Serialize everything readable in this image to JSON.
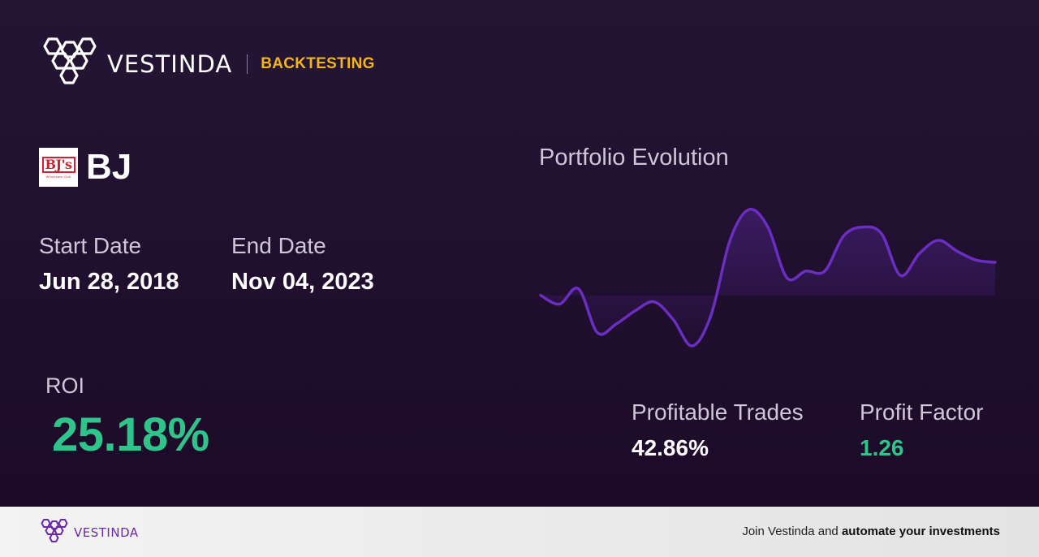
{
  "header": {
    "brand_name": "VESTINDA",
    "section": "BACKTESTING"
  },
  "ticker": {
    "logo_text": "BJ's",
    "logo_subtext": "Wholesale Club",
    "symbol": "BJ"
  },
  "dates": {
    "start_label": "Start Date",
    "start_value": "Jun 28, 2018",
    "end_label": "End Date",
    "end_value": "Nov 04, 2023"
  },
  "roi": {
    "label": "ROI",
    "value": "25.18%"
  },
  "stats": {
    "profitable_trades_label": "Profitable Trades",
    "profitable_trades_value": "42.86%",
    "profit_factor_label": "Profit Factor",
    "profit_factor_value": "1.26"
  },
  "chart": {
    "title": "Portfolio Evolution"
  },
  "chart_data": {
    "type": "line",
    "title": "Portfolio Evolution",
    "values": [
      -1,
      -5,
      2,
      -18,
      -14,
      -8,
      -4,
      -12,
      -24,
      -10,
      24,
      38,
      30,
      7,
      10,
      10,
      26,
      30,
      27,
      8,
      18,
      24,
      19,
      15,
      14
    ],
    "line_color": "#6a2ec0"
  },
  "footer": {
    "brand_name": "VESTINDA",
    "cta_prefix": "Join Vestinda and",
    "cta_bold": "automate your investments"
  },
  "colors": {
    "accent_gold": "#f2b51c",
    "positive_green": "#2ec48a",
    "brand_purple": "#6a2aa8"
  }
}
